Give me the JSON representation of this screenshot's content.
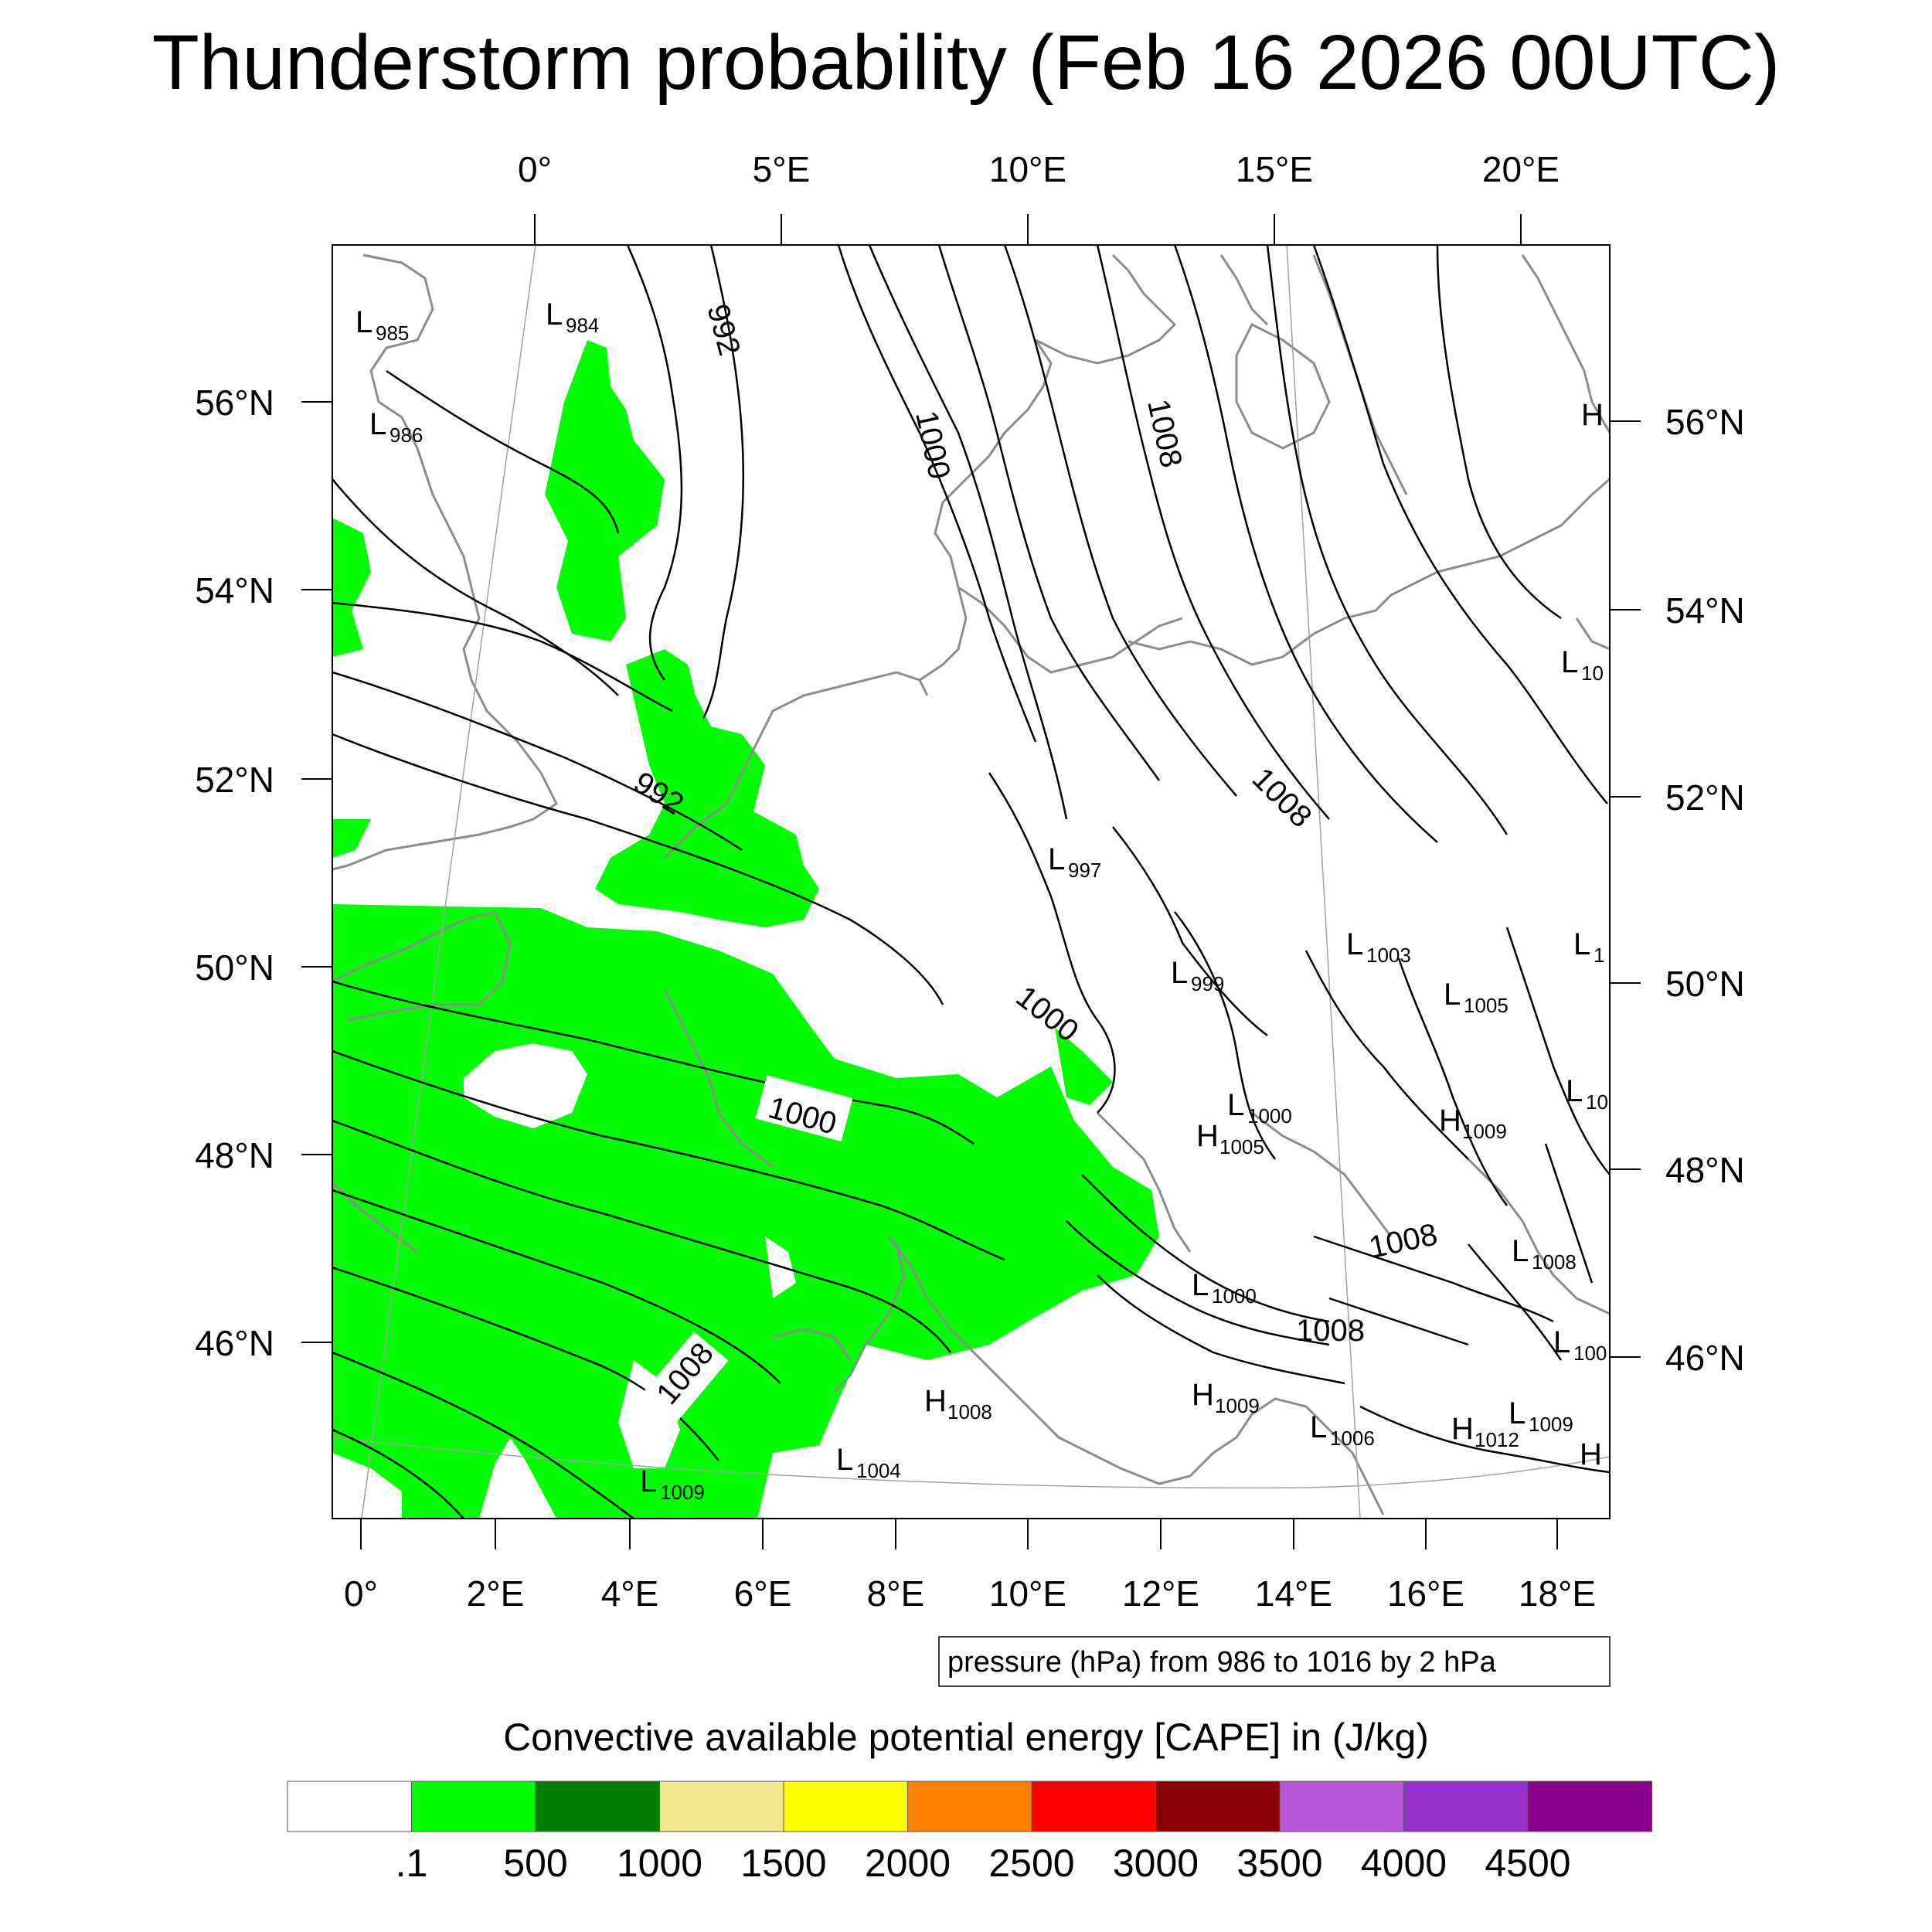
{
  "title": "Thunderstorm probability (Feb 16 2026 00UTC)",
  "top_lon_labels": [
    "0°",
    "5°E",
    "10°E",
    "15°E",
    "20°E"
  ],
  "bottom_lon_labels": [
    "0°",
    "2°E",
    "4°E",
    "6°E",
    "8°E",
    "10°E",
    "12°E",
    "14°E",
    "16°E",
    "18°E"
  ],
  "left_lat_labels": [
    "56°N",
    "54°N",
    "52°N",
    "50°N",
    "48°N",
    "46°N"
  ],
  "right_lat_labels": [
    "56°N",
    "54°N",
    "52°N",
    "50°N",
    "48°N",
    "46°N"
  ],
  "contour_labels": [
    "992",
    "992",
    "1000",
    "1000",
    "1000",
    "1008",
    "1008",
    "1008",
    "1008",
    "1008"
  ],
  "pressure_centers": [
    {
      "type": "L",
      "value": "985"
    },
    {
      "type": "L",
      "value": "984"
    },
    {
      "type": "L",
      "value": "986"
    },
    {
      "type": "L",
      "value": "997"
    },
    {
      "type": "L",
      "value": "999"
    },
    {
      "type": "L",
      "value": "1003"
    },
    {
      "type": "L",
      "value": "1005"
    },
    {
      "type": "L",
      "value": "1000"
    },
    {
      "type": "H",
      "value": "1005"
    },
    {
      "type": "H",
      "value": "1009"
    },
    {
      "type": "L",
      "value": "1008"
    },
    {
      "type": "L",
      "value": "1000"
    },
    {
      "type": "H",
      "value": "1008"
    },
    {
      "type": "H",
      "value": "1009"
    },
    {
      "type": "L",
      "value": "1006"
    },
    {
      "type": "H",
      "value": "1012"
    },
    {
      "type": "L",
      "value": "1009"
    },
    {
      "type": "L",
      "value": "1004"
    },
    {
      "type": "L",
      "value": "1009"
    },
    {
      "type": "L",
      "value": "10"
    },
    {
      "type": "L",
      "value": "1"
    },
    {
      "type": "L",
      "value": "10"
    },
    {
      "type": "L",
      "value": "100"
    },
    {
      "type": "H",
      "value": ""
    },
    {
      "type": "H",
      "value": ""
    }
  ],
  "info_box": "pressure (hPa) from 986 to 1016 by 2 hPa",
  "legend": {
    "title": "Convective available potential energy [CAPE] in (J/kg)",
    "colors": [
      "#ffffff",
      "#00ff00",
      "#008000",
      "#f0e68c",
      "#ffff00",
      "#ff8000",
      "#ff0000",
      "#8b0000",
      "#b856d7",
      "#9932cc",
      "#8b008b"
    ],
    "labels": [
      ".1",
      "500",
      "1000",
      "1500",
      "2000",
      "2500",
      "3000",
      "3500",
      "4000",
      "4500"
    ]
  },
  "colors": {
    "cape_fill": "#00ff00",
    "coast": "#8c8c8c",
    "isobar": "#000000",
    "grid": "#a0a0a0"
  }
}
